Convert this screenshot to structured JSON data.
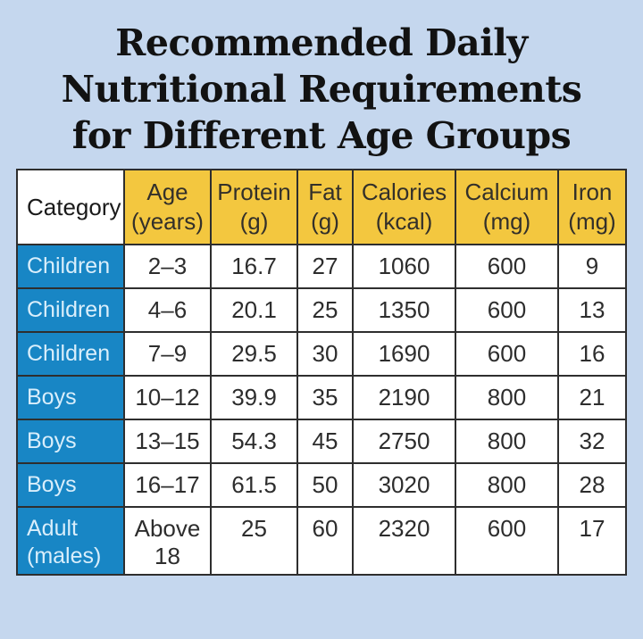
{
  "title": {
    "line1": "Recommended Daily",
    "line2": "Nutritional Requirements",
    "line3": "for Different Age Groups"
  },
  "colors": {
    "page_bg": "#c5d7ee",
    "header_bg": "#f3c73f",
    "header_text": "#33302a",
    "category_bg": "#1886c5",
    "category_text": "#d9eefb",
    "border": "#2e2e2e",
    "body_text": "#2d2d2d",
    "title_text": "#121212"
  },
  "chart_data": {
    "type": "table",
    "title": "Recommended Daily Nutritional Requirements for Different Age Groups",
    "column_keys": [
      "category",
      "age-years",
      "protein-g",
      "fat-g",
      "calories-kcal",
      "calcium-mg",
      "iron-mg"
    ],
    "headers": [
      "Category",
      "Age\n(years)",
      "Protein\n(g)",
      "Fat\n(g)",
      "Calories\n(kcal)",
      "Calcium\n(mg)",
      "Iron\n(mg)"
    ],
    "rows": [
      [
        "Children",
        "2–3",
        "16.7",
        "27",
        "1060",
        "600",
        "9"
      ],
      [
        "Children",
        "4–6",
        "20.1",
        "25",
        "1350",
        "600",
        "13"
      ],
      [
        "Children",
        "7–9",
        "29.5",
        "30",
        "1690",
        "600",
        "16"
      ],
      [
        "Boys",
        "10–12",
        "39.9",
        "35",
        "2190",
        "800",
        "21"
      ],
      [
        "Boys",
        "13–15",
        "54.3",
        "45",
        "2750",
        "800",
        "32"
      ],
      [
        "Boys",
        "16–17",
        "61.5",
        "50",
        "3020",
        "800",
        "28"
      ],
      [
        "Adult\n(males)",
        "Above\n18",
        "25",
        "60",
        "2320",
        "600",
        "17"
      ]
    ]
  }
}
